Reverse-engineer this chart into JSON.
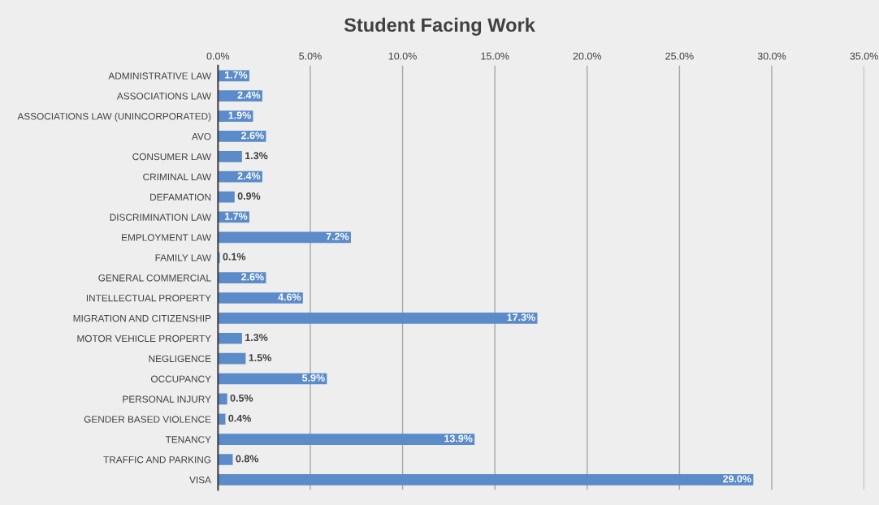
{
  "chart_data": {
    "type": "bar",
    "orientation": "horizontal",
    "title": "Student Facing Work",
    "categories": [
      "ADMINISTRATIVE LAW",
      "ASSOCIATIONS LAW",
      "ASSOCIATIONS LAW (UNINCORPORATED)",
      "AVO",
      "CONSUMER LAW",
      "CRIMINAL LAW",
      "DEFAMATION",
      "DISCRIMINATION LAW",
      "EMPLOYMENT LAW",
      "FAMILY LAW",
      "GENERAL COMMERCIAL",
      "INTELLECTUAL PROPERTY",
      "MIGRATION AND CITIZENSHIP",
      "MOTOR VEHICLE PROPERTY",
      "NEGLIGENCE",
      "OCCUPANCY",
      "PERSONAL INJURY",
      "GENDER BASED VIOLENCE",
      "TENANCY",
      "TRAFFIC AND PARKING",
      "VISA"
    ],
    "values": [
      1.7,
      2.4,
      1.9,
      2.6,
      1.3,
      2.4,
      0.9,
      1.7,
      7.2,
      0.1,
      2.6,
      4.6,
      17.3,
      1.3,
      1.5,
      5.9,
      0.5,
      0.4,
      13.9,
      0.8,
      29.0
    ],
    "value_labels": [
      "1.7%",
      "2.4%",
      "1.9%",
      "2.6%",
      "1.3%",
      "2.4%",
      "0.9%",
      "1.7%",
      "7.2%",
      "0.1%",
      "2.6%",
      "4.6%",
      "17.3%",
      "1.3%",
      "1.5%",
      "5.9%",
      "0.5%",
      "0.4%",
      "13.9%",
      "0.8%",
      "29.0%"
    ],
    "color": "#5b8bc9",
    "xlim": [
      0,
      35
    ],
    "xticks": [
      {
        "value": 0,
        "label": "0.0%"
      },
      {
        "value": 5,
        "label": "5.0%"
      },
      {
        "value": 10,
        "label": "10.0%"
      },
      {
        "value": 15,
        "label": "15.0%"
      },
      {
        "value": 20,
        "label": "20.0%"
      },
      {
        "value": 25,
        "label": "25.0%"
      },
      {
        "value": 30,
        "label": "30.0%"
      },
      {
        "value": 35,
        "label": "35.0%"
      }
    ],
    "grid": "x",
    "legend": false
  }
}
